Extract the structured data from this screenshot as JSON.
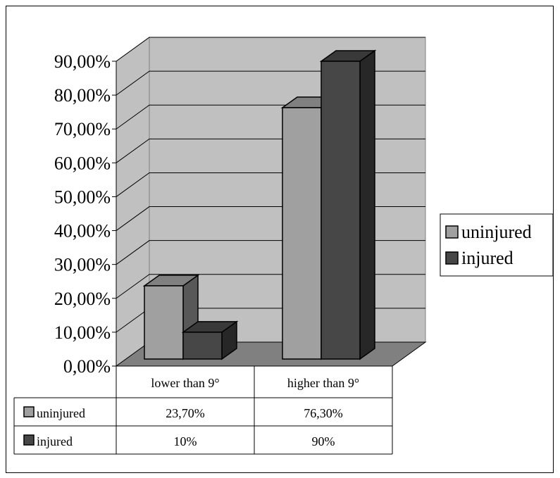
{
  "chart_data": {
    "type": "bar",
    "categories": [
      "lower than 9°",
      "higher than 9°"
    ],
    "series": [
      {
        "name": "uninjured",
        "values": [
          23.7,
          76.3
        ],
        "labels": [
          "23,70%",
          "76,30%"
        ],
        "color": "#a0a0a0"
      },
      {
        "name": "injured",
        "values": [
          10,
          90
        ],
        "labels": [
          "10%",
          "90%"
        ],
        "color": "#474747"
      }
    ],
    "ylim": [
      0,
      90
    ],
    "yticks": [
      0,
      10,
      20,
      30,
      40,
      50,
      60,
      70,
      80,
      90
    ],
    "ytick_labels": [
      "0,00%",
      "10,00%",
      "20,00%",
      "30,00%",
      "40,00%",
      "50,00%",
      "60,00%",
      "70,00%",
      "80,00%",
      "90,00%"
    ],
    "grid": true,
    "legend_position": "right",
    "data_table": true,
    "wall_color": "#c0c0c0",
    "floor_color": "#808080"
  }
}
